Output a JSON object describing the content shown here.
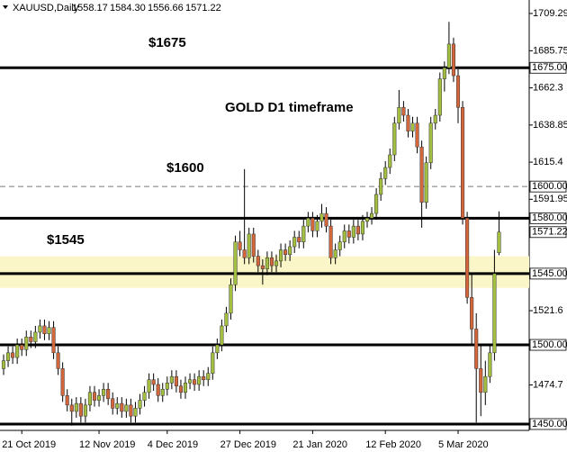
{
  "chart_data": {
    "type": "candlestick",
    "header": {
      "symbol": "XAUUSD,Daily",
      "values": [
        "1558.17",
        "1584.30",
        "1556.66",
        "1571.22"
      ]
    },
    "annotations": [
      "$1675",
      "GOLD D1 timeframe",
      "$1600",
      "$1545"
    ],
    "categories": [
      null,
      null,
      null,
      null,
      "21 Oct 2019",
      null,
      null,
      null,
      null,
      null,
      null,
      null,
      null,
      null,
      null,
      null,
      null,
      null,
      null,
      null,
      null,
      "12 Nov 2019",
      null,
      null,
      null,
      null,
      null,
      null,
      null,
      null,
      null,
      null,
      null,
      null,
      null,
      null,
      "4 Dec 2019",
      null,
      null,
      null,
      null,
      null,
      null,
      null,
      null,
      null,
      null,
      null,
      null,
      null,
      null,
      null,
      "27 Dec 2019",
      null,
      null,
      null,
      null,
      null,
      null,
      null,
      null,
      null,
      null,
      null,
      null,
      null,
      null,
      null,
      "21 Jan 2020",
      null,
      null,
      null,
      null,
      null,
      null,
      null,
      null,
      null,
      null,
      null,
      null,
      null,
      null,
      null,
      "12 Feb 2020",
      null,
      null,
      null,
      null,
      null,
      null,
      null,
      null,
      null,
      null,
      null,
      null,
      null,
      null,
      null,
      "5 Mar 2020",
      null,
      null,
      null,
      null,
      null,
      null,
      null,
      null,
      null
    ],
    "series": [
      {
        "name": "XAUUSD",
        "up_color": "#a3bf3f",
        "down_color": "#d4663c",
        "ohlc": [
          [
            1485,
            1494,
            1481,
            1490
          ],
          [
            1490,
            1499,
            1486,
            1495
          ],
          [
            1495,
            1499,
            1488,
            1492
          ],
          [
            1492,
            1504,
            1488,
            1500
          ],
          [
            1500,
            1504,
            1493,
            1497
          ],
          [
            1497,
            1509,
            1493,
            1505
          ],
          [
            1505,
            1509,
            1498,
            1502
          ],
          [
            1502,
            1512,
            1498,
            1508
          ],
          [
            1508,
            1516,
            1504,
            1512
          ],
          [
            1512,
            1516,
            1503,
            1507
          ],
          [
            1507,
            1515,
            1503,
            1511
          ],
          [
            1511,
            1515,
            1491,
            1495
          ],
          [
            1495,
            1499,
            1481,
            1485
          ],
          [
            1485,
            1489,
            1464,
            1468
          ],
          [
            1468,
            1472,
            1458,
            1462
          ],
          [
            1462,
            1466,
            1449,
            1458
          ],
          [
            1458,
            1467,
            1454,
            1463
          ],
          [
            1463,
            1467,
            1451,
            1455
          ],
          [
            1455,
            1466,
            1451,
            1462
          ],
          [
            1462,
            1474,
            1458,
            1470
          ],
          [
            1470,
            1474,
            1461,
            1465
          ],
          [
            1465,
            1472,
            1461,
            1468
          ],
          [
            1468,
            1476,
            1464,
            1472
          ],
          [
            1472,
            1476,
            1462,
            1466
          ],
          [
            1466,
            1470,
            1456,
            1460
          ],
          [
            1460,
            1467,
            1456,
            1463
          ],
          [
            1463,
            1467,
            1454,
            1458
          ],
          [
            1458,
            1466,
            1454,
            1462
          ],
          [
            1462,
            1466,
            1451,
            1455
          ],
          [
            1455,
            1464,
            1451,
            1460
          ],
          [
            1460,
            1469,
            1456,
            1465
          ],
          [
            1465,
            1474,
            1461,
            1470
          ],
          [
            1470,
            1482,
            1466,
            1478
          ],
          [
            1478,
            1482,
            1471,
            1475
          ],
          [
            1475,
            1479,
            1464,
            1468
          ],
          [
            1468,
            1476,
            1464,
            1472
          ],
          [
            1472,
            1480,
            1468,
            1476
          ],
          [
            1476,
            1484,
            1472,
            1480
          ],
          [
            1480,
            1484,
            1470,
            1474
          ],
          [
            1474,
            1478,
            1466,
            1470
          ],
          [
            1470,
            1480,
            1466,
            1476
          ],
          [
            1476,
            1482,
            1472,
            1478
          ],
          [
            1478,
            1482,
            1471,
            1475
          ],
          [
            1475,
            1484,
            1471,
            1480
          ],
          [
            1480,
            1484,
            1474,
            1478
          ],
          [
            1478,
            1486,
            1474,
            1482
          ],
          [
            1482,
            1499,
            1478,
            1495
          ],
          [
            1495,
            1504,
            1491,
            1500
          ],
          [
            1500,
            1516,
            1496,
            1512
          ],
          [
            1512,
            1524,
            1508,
            1520
          ],
          [
            1520,
            1542,
            1516,
            1538
          ],
          [
            1538,
            1569,
            1534,
            1565
          ],
          [
            1565,
            1572,
            1556,
            1560
          ],
          [
            1560,
            1611,
            1551,
            1555
          ],
          [
            1555,
            1574,
            1551,
            1570
          ],
          [
            1570,
            1574,
            1552,
            1556
          ],
          [
            1556,
            1560,
            1546,
            1550
          ],
          [
            1550,
            1554,
            1538,
            1548
          ],
          [
            1548,
            1559,
            1544,
            1555
          ],
          [
            1555,
            1559,
            1546,
            1550
          ],
          [
            1550,
            1557,
            1546,
            1553
          ],
          [
            1553,
            1564,
            1549,
            1560
          ],
          [
            1560,
            1564,
            1553,
            1557
          ],
          [
            1557,
            1566,
            1553,
            1562
          ],
          [
            1562,
            1572,
            1558,
            1568
          ],
          [
            1568,
            1572,
            1561,
            1565
          ],
          [
            1565,
            1579,
            1561,
            1575
          ],
          [
            1575,
            1584,
            1571,
            1580
          ],
          [
            1580,
            1584,
            1568,
            1572
          ],
          [
            1572,
            1582,
            1568,
            1578
          ],
          [
            1578,
            1589,
            1574,
            1583
          ],
          [
            1583,
            1587,
            1571,
            1575
          ],
          [
            1575,
            1579,
            1551,
            1555
          ],
          [
            1555,
            1564,
            1551,
            1560
          ],
          [
            1560,
            1569,
            1556,
            1565
          ],
          [
            1565,
            1576,
            1561,
            1572
          ],
          [
            1572,
            1576,
            1564,
            1568
          ],
          [
            1568,
            1579,
            1564,
            1575
          ],
          [
            1575,
            1579,
            1566,
            1570
          ],
          [
            1570,
            1582,
            1566,
            1578
          ],
          [
            1578,
            1584,
            1574,
            1580
          ],
          [
            1580,
            1587,
            1576,
            1583
          ],
          [
            1583,
            1599,
            1579,
            1595
          ],
          [
            1595,
            1609,
            1591,
            1605
          ],
          [
            1605,
            1616,
            1601,
            1612
          ],
          [
            1612,
            1624,
            1608,
            1620
          ],
          [
            1620,
            1644,
            1616,
            1640
          ],
          [
            1640,
            1661,
            1636,
            1650
          ],
          [
            1650,
            1654,
            1641,
            1645
          ],
          [
            1645,
            1649,
            1631,
            1635
          ],
          [
            1635,
            1644,
            1631,
            1640
          ],
          [
            1640,
            1644,
            1621,
            1625
          ],
          [
            1625,
            1629,
            1574,
            1590
          ],
          [
            1590,
            1619,
            1586,
            1615
          ],
          [
            1615,
            1644,
            1611,
            1640
          ],
          [
            1640,
            1649,
            1636,
            1645
          ],
          [
            1645,
            1672,
            1641,
            1668
          ],
          [
            1668,
            1679,
            1660,
            1675
          ],
          [
            1675,
            1704,
            1671,
            1690
          ],
          [
            1690,
            1694,
            1666,
            1670
          ],
          [
            1670,
            1674,
            1640,
            1650
          ],
          [
            1650,
            1654,
            1576,
            1580
          ],
          [
            1580,
            1584,
            1526,
            1530
          ],
          [
            1530,
            1545,
            1500,
            1510
          ],
          [
            1510,
            1520,
            1451,
            1485
          ],
          [
            1485,
            1500,
            1455,
            1470
          ],
          [
            1470,
            1490,
            1462,
            1480
          ],
          [
            1480,
            1500,
            1476,
            1495
          ],
          [
            1495,
            1560,
            1490,
            1545
          ],
          [
            1558.17,
            1584.3,
            1556.66,
            1571.22
          ]
        ]
      }
    ],
    "ylim": [
      1446.0,
      1717.8
    ],
    "yticks": [
      1709.29,
      1685.75,
      1662.3,
      1638.85,
      1615.4,
      1591.95,
      1521.6,
      1474.7
    ],
    "levels": [
      {
        "value": 1675,
        "label": "1675.00"
      },
      {
        "value": 1600,
        "label": "1600.00"
      },
      {
        "value": 1580,
        "label": "1580.00"
      },
      {
        "value": 1545,
        "label": "1545.00"
      },
      {
        "value": 1500,
        "label": "1500.00"
      },
      {
        "value": 1450,
        "label": "1450.00"
      }
    ],
    "current_price": {
      "value": 1571.22,
      "label": "1571.22"
    },
    "zone": [
      1536,
      1556
    ],
    "zone_color": "#fbf6c8"
  }
}
